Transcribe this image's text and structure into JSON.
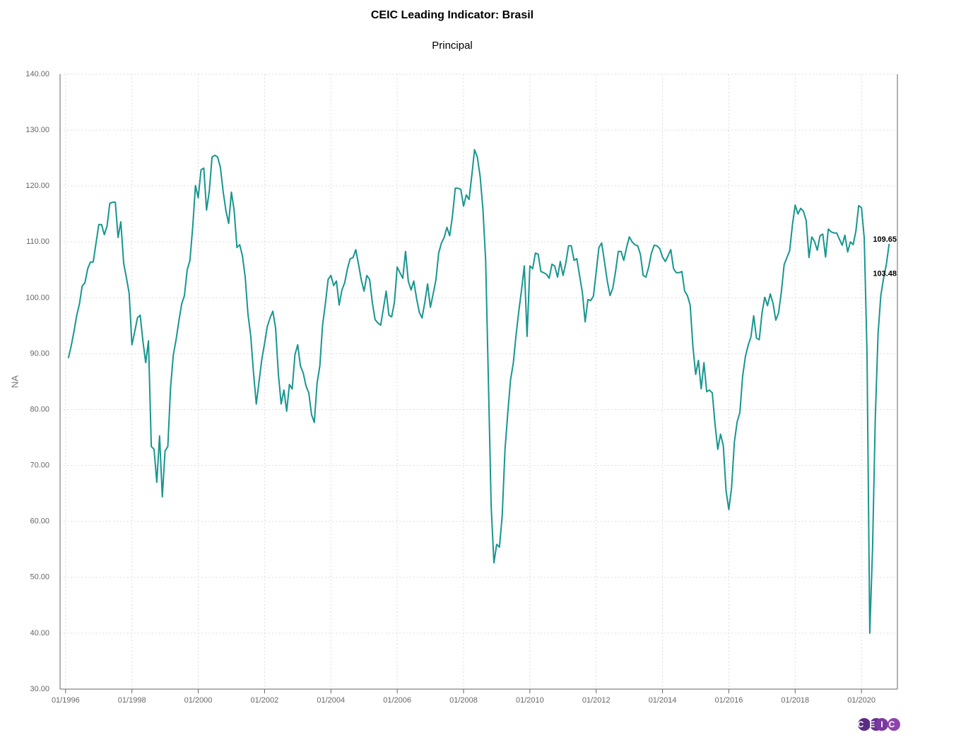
{
  "chart_data": {
    "type": "line",
    "title": "CEIC Leading Indicator: Brasil",
    "subtitle": "Principal",
    "ylabel": "NA",
    "logo": "CEIC",
    "color": "#17968f",
    "grid": true,
    "xlim": [
      "11/1995",
      "02/2021"
    ],
    "xticks": [
      "01/1996",
      "01/1998",
      "01/2000",
      "01/2002",
      "01/2004",
      "01/2006",
      "01/2008",
      "01/2010",
      "01/2012",
      "01/2014",
      "01/2016",
      "01/2018",
      "01/2020"
    ],
    "ylim": [
      30,
      140
    ],
    "yticks": [
      {
        "value": 30,
        "label": "30.00"
      },
      {
        "value": 40,
        "label": "40.00"
      },
      {
        "value": 50,
        "label": "50.00"
      },
      {
        "value": 60,
        "label": "60.00"
      },
      {
        "value": 70,
        "label": "70.00"
      },
      {
        "value": 80,
        "label": "80.00"
      },
      {
        "value": 90,
        "label": "90.00"
      },
      {
        "value": 100,
        "label": "100.00"
      },
      {
        "value": 110,
        "label": "110.00"
      },
      {
        "value": 120,
        "label": "120.00"
      },
      {
        "value": 130,
        "label": "130.00"
      },
      {
        "value": 140,
        "label": "140.00"
      }
    ],
    "annotations": [
      {
        "x": "09/2020",
        "text": "103.48"
      },
      {
        "x": "11/2020",
        "text": "109.65"
      }
    ],
    "x": [
      "02/1996",
      "03/1996",
      "04/1996",
      "05/1996",
      "06/1996",
      "07/1996",
      "08/1996",
      "09/1996",
      "10/1996",
      "11/1996",
      "12/1996",
      "01/1997",
      "02/1997",
      "03/1997",
      "04/1997",
      "05/1997",
      "06/1997",
      "07/1997",
      "08/1997",
      "09/1997",
      "10/1997",
      "11/1997",
      "12/1997",
      "01/1998",
      "02/1998",
      "03/1998",
      "04/1998",
      "05/1998",
      "06/1998",
      "07/1998",
      "08/1998",
      "09/1998",
      "10/1998",
      "11/1998",
      "12/1998",
      "01/1999",
      "02/1999",
      "03/1999",
      "04/1999",
      "05/1999",
      "06/1999",
      "07/1999",
      "08/1999",
      "09/1999",
      "10/1999",
      "11/1999",
      "12/1999",
      "01/2000",
      "02/2000",
      "03/2000",
      "04/2000",
      "05/2000",
      "06/2000",
      "07/2000",
      "08/2000",
      "09/2000",
      "10/2000",
      "11/2000",
      "12/2000",
      "01/2001",
      "02/2001",
      "03/2001",
      "04/2001",
      "05/2001",
      "06/2001",
      "07/2001",
      "08/2001",
      "09/2001",
      "10/2001",
      "11/2001",
      "12/2001",
      "01/2002",
      "02/2002",
      "03/2002",
      "04/2002",
      "05/2002",
      "06/2002",
      "07/2002",
      "08/2002",
      "09/2002",
      "10/2002",
      "11/2002",
      "12/2002",
      "01/2003",
      "02/2003",
      "03/2003",
      "04/2003",
      "05/2003",
      "06/2003",
      "07/2003",
      "08/2003",
      "09/2003",
      "10/2003",
      "11/2003",
      "12/2003",
      "01/2004",
      "02/2004",
      "03/2004",
      "04/2004",
      "05/2004",
      "06/2004",
      "07/2004",
      "08/2004",
      "09/2004",
      "10/2004",
      "11/2004",
      "12/2004",
      "01/2005",
      "02/2005",
      "03/2005",
      "04/2005",
      "05/2005",
      "06/2005",
      "07/2005",
      "08/2005",
      "09/2005",
      "10/2005",
      "11/2005",
      "12/2005",
      "01/2006",
      "02/2006",
      "03/2006",
      "04/2006",
      "05/2006",
      "06/2006",
      "07/2006",
      "08/2006",
      "09/2006",
      "10/2006",
      "11/2006",
      "12/2006",
      "01/2007",
      "02/2007",
      "03/2007",
      "04/2007",
      "05/2007",
      "06/2007",
      "07/2007",
      "08/2007",
      "09/2007",
      "10/2007",
      "11/2007",
      "12/2007",
      "01/2008",
      "02/2008",
      "03/2008",
      "04/2008",
      "05/2008",
      "06/2008",
      "07/2008",
      "08/2008",
      "09/2008",
      "10/2008",
      "11/2008",
      "12/2008",
      "01/2009",
      "02/2009",
      "03/2009",
      "04/2009",
      "05/2009",
      "06/2009",
      "07/2009",
      "08/2009",
      "09/2009",
      "10/2009",
      "11/2009",
      "12/2009",
      "01/2010",
      "02/2010",
      "03/2010",
      "04/2010",
      "05/2010",
      "06/2010",
      "07/2010",
      "08/2010",
      "09/2010",
      "10/2010",
      "11/2010",
      "12/2010",
      "01/2011",
      "02/2011",
      "03/2011",
      "04/2011",
      "05/2011",
      "06/2011",
      "07/2011",
      "08/2011",
      "09/2011",
      "10/2011",
      "11/2011",
      "12/2011",
      "01/2012",
      "02/2012",
      "03/2012",
      "04/2012",
      "05/2012",
      "06/2012",
      "07/2012",
      "08/2012",
      "09/2012",
      "10/2012",
      "11/2012",
      "12/2012",
      "01/2013",
      "02/2013",
      "03/2013",
      "04/2013",
      "05/2013",
      "06/2013",
      "07/2013",
      "08/2013",
      "09/2013",
      "10/2013",
      "11/2013",
      "12/2013",
      "01/2014",
      "02/2014",
      "03/2014",
      "04/2014",
      "05/2014",
      "06/2014",
      "07/2014",
      "08/2014",
      "09/2014",
      "10/2014",
      "11/2014",
      "12/2014",
      "01/2015",
      "02/2015",
      "03/2015",
      "04/2015",
      "05/2015",
      "06/2015",
      "07/2015",
      "08/2015",
      "09/2015",
      "10/2015",
      "11/2015",
      "12/2015",
      "01/2016",
      "02/2016",
      "03/2016",
      "04/2016",
      "05/2016",
      "06/2016",
      "07/2016",
      "08/2016",
      "09/2016",
      "10/2016",
      "11/2016",
      "12/2016",
      "01/2017",
      "02/2017",
      "03/2017",
      "04/2017",
      "05/2017",
      "06/2017",
      "07/2017",
      "08/2017",
      "09/2017",
      "10/2017",
      "11/2017",
      "12/2017",
      "01/2018",
      "02/2018",
      "03/2018",
      "04/2018",
      "05/2018",
      "06/2018",
      "07/2018",
      "08/2018",
      "09/2018",
      "10/2018",
      "11/2018",
      "12/2018",
      "01/2019",
      "02/2019",
      "03/2019",
      "04/2019",
      "05/2019",
      "06/2019",
      "07/2019",
      "08/2019",
      "09/2019",
      "10/2019",
      "11/2019",
      "12/2019",
      "01/2020",
      "02/2020",
      "03/2020",
      "04/2020",
      "05/2020",
      "06/2020",
      "07/2020",
      "08/2020",
      "09/2020",
      "10/2020",
      "11/2020"
    ],
    "values": [
      89.2,
      91.3,
      93.9,
      96.8,
      98.9,
      102.1,
      102.7,
      105.2,
      106.4,
      106.4,
      109.7,
      113.1,
      113.1,
      111.3,
      112.8,
      116.9,
      117.1,
      117.1,
      110.8,
      113.6,
      106.2,
      103.6,
      100.8,
      91.6,
      93.9,
      96.4,
      96.9,
      92.2,
      88.4,
      92.3,
      73.4,
      72.9,
      67.0,
      75.3,
      64.4,
      72.6,
      73.4,
      84.0,
      89.8,
      92.6,
      95.9,
      98.9,
      100.4,
      105.0,
      106.7,
      112.6,
      120.1,
      117.9,
      122.9,
      123.2,
      115.7,
      119.1,
      125.2,
      125.5,
      125.2,
      123.4,
      119.1,
      115.6,
      113.3,
      118.9,
      115.6,
      109.0,
      109.5,
      107.5,
      103.7,
      97.1,
      93.1,
      86.5,
      81.0,
      85.0,
      89.0,
      91.8,
      94.9,
      96.4,
      97.6,
      94.6,
      86.3,
      81.0,
      83.5,
      79.7,
      84.5,
      83.7,
      89.8,
      91.6,
      87.8,
      86.5,
      84.2,
      83.0,
      79.1,
      77.7,
      84.7,
      87.8,
      95.1,
      98.9,
      103.3,
      104.0,
      102.2,
      103.0,
      98.7,
      101.4,
      102.7,
      105.2,
      107.0,
      107.2,
      108.6,
      106.0,
      103.2,
      101.2,
      104.0,
      103.3,
      99.2,
      96.1,
      95.5,
      95.1,
      98.1,
      101.2,
      96.9,
      96.6,
      99.2,
      105.5,
      104.5,
      103.5,
      108.3,
      103.0,
      101.4,
      103.0,
      99.9,
      97.4,
      96.4,
      99.2,
      102.5,
      98.3,
      100.7,
      103.2,
      108.0,
      109.8,
      110.8,
      112.6,
      111.1,
      114.6,
      119.6,
      119.6,
      119.4,
      116.4,
      118.4,
      117.6,
      121.9,
      126.5,
      125.2,
      121.7,
      115.9,
      106.7,
      85.0,
      62.7,
      52.6,
      55.9,
      55.4,
      61.0,
      72.9,
      79.4,
      85.3,
      88.3,
      93.3,
      97.6,
      101.4,
      105.7,
      93.1,
      105.7,
      105.2,
      108.0,
      107.8,
      104.7,
      104.5,
      104.2,
      103.5,
      106.0,
      105.7,
      103.7,
      106.5,
      104.0,
      106.2,
      109.3,
      109.3,
      106.7,
      107.0,
      104.0,
      100.9,
      95.7,
      99.7,
      99.5,
      100.3,
      104.6,
      109.0,
      109.8,
      106.5,
      103.0,
      100.4,
      101.7,
      104.7,
      108.3,
      108.3,
      106.7,
      109.0,
      110.9,
      110.0,
      109.5,
      109.3,
      107.8,
      104.0,
      103.7,
      105.5,
      108.0,
      109.4,
      109.3,
      108.8,
      107.3,
      106.5,
      107.5,
      108.6,
      105.2,
      104.5,
      104.5,
      104.7,
      101.2,
      100.4,
      98.7,
      91.3,
      86.3,
      88.8,
      83.7,
      88.4,
      83.2,
      83.5,
      83.0,
      77.4,
      72.9,
      75.6,
      73.6,
      65.5,
      62.1,
      66.0,
      74.2,
      77.8,
      79.5,
      86.0,
      89.5,
      91.5,
      93.0,
      96.8,
      92.8,
      92.5,
      97.3,
      100.1,
      98.6,
      100.7,
      99.0,
      96.0,
      97.3,
      101.0,
      105.9,
      107.2,
      108.4,
      113.0,
      116.6,
      115.0,
      116.0,
      115.5,
      113.8,
      107.2,
      110.9,
      110.1,
      108.5,
      111.1,
      111.4,
      107.3,
      112.3,
      111.8,
      111.6,
      111.6,
      110.5,
      109.4,
      111.2,
      108.2,
      110.0,
      109.5,
      112.0,
      116.5,
      116.1,
      110.6,
      90.0,
      40.0,
      55.0,
      78.5,
      93.5,
      100.4,
      103.48,
      106.0,
      109.65
    ]
  }
}
